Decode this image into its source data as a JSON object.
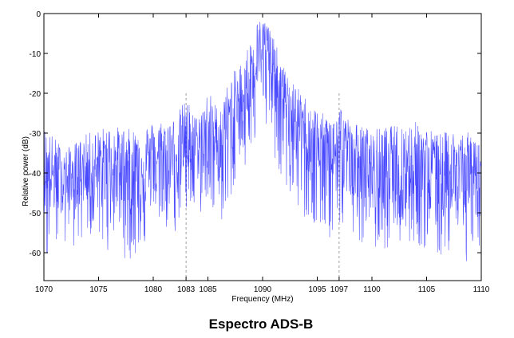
{
  "chart_data": {
    "type": "line",
    "title": "Espectro ADS-B",
    "xlabel": "Frequency (MHz)",
    "ylabel": "Relative power (dB)",
    "xlim": [
      1070,
      1110
    ],
    "ylim": [
      -67,
      0
    ],
    "x_ticks": [
      1070,
      1075,
      1080,
      1083,
      1085,
      1090,
      1095,
      1097,
      1100,
      1105,
      1110
    ],
    "y_ticks": [
      0,
      -10,
      -20,
      -30,
      -40,
      -50,
      -60
    ],
    "reference_lines_x": [
      1083,
      1097
    ],
    "grid": false,
    "series": [
      {
        "color": "#1a1aff",
        "style": "dense noisy spectrum (dotted)",
        "x": [
          1070,
          1072,
          1074,
          1076,
          1078,
          1080,
          1082,
          1083,
          1084,
          1085,
          1086,
          1087,
          1088,
          1089,
          1089.5,
          1090,
          1090.5,
          1091,
          1092,
          1093,
          1094,
          1095,
          1096,
          1097,
          1098,
          1100,
          1102,
          1104,
          1106,
          1108,
          1110
        ],
        "upper": [
          -28,
          -34,
          -30,
          -28,
          -29,
          -27,
          -26,
          -21,
          -26,
          -19,
          -24,
          -16,
          -12,
          -6,
          -2,
          -1,
          -2,
          -6,
          -14,
          -18,
          -21,
          -24,
          -26,
          -22,
          -27,
          -29,
          -28,
          -27,
          -30,
          -29,
          -31
        ],
        "mean": [
          -40,
          -42,
          -39,
          -38,
          -38,
          -37,
          -35,
          -32,
          -34,
          -30,
          -32,
          -27,
          -22,
          -15,
          -10,
          -8,
          -10,
          -14,
          -22,
          -27,
          -31,
          -33,
          -35,
          -33,
          -36,
          -38,
          -38,
          -37,
          -39,
          -39,
          -40
        ],
        "lower": [
          -62,
          -60,
          -57,
          -60,
          -62,
          -57,
          -55,
          -50,
          -52,
          -47,
          -55,
          -46,
          -42,
          -35,
          -30,
          -27,
          -30,
          -35,
          -44,
          -49,
          -52,
          -55,
          -57,
          -54,
          -57,
          -59,
          -59,
          -58,
          -61,
          -62,
          -66
        ]
      }
    ]
  }
}
